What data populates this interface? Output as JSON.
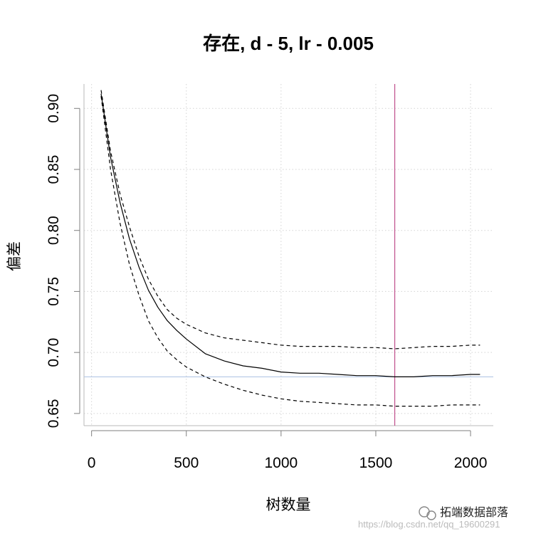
{
  "chart_data": {
    "type": "line",
    "title": "存在, d - 5, lr - 0.005",
    "xlabel": "树数量",
    "ylabel": "偏差",
    "xlim": [
      -40,
      2120
    ],
    "ylim": [
      0.64,
      0.92
    ],
    "x_ticks": [
      0,
      500,
      1000,
      1500,
      2000
    ],
    "y_ticks": [
      0.65,
      0.7,
      0.75,
      0.8,
      0.85,
      0.9
    ],
    "x_tick_labels": [
      "0",
      "500",
      "1000",
      "1500",
      "2000"
    ],
    "y_tick_labels": [
      "0.65",
      "0.70",
      "0.75",
      "0.80",
      "0.85",
      "0.90"
    ],
    "grid": true,
    "series": [
      {
        "style": "solid",
        "color": "#000000",
        "x": [
          50,
          100,
          150,
          200,
          250,
          300,
          350,
          400,
          450,
          500,
          600,
          700,
          800,
          900,
          1000,
          1100,
          1200,
          1300,
          1400,
          1500,
          1600,
          1700,
          1800,
          1900,
          2000,
          2050
        ],
        "values": [
          0.912,
          0.86,
          0.823,
          0.793,
          0.77,
          0.751,
          0.737,
          0.726,
          0.718,
          0.711,
          0.699,
          0.693,
          0.689,
          0.687,
          0.684,
          0.683,
          0.683,
          0.682,
          0.681,
          0.681,
          0.68,
          0.68,
          0.681,
          0.681,
          0.682,
          0.682
        ]
      },
      {
        "style": "dashed",
        "color": "#000000",
        "x": [
          50,
          100,
          150,
          200,
          250,
          300,
          350,
          400,
          450,
          500,
          600,
          700,
          800,
          900,
          1000,
          1100,
          1200,
          1300,
          1400,
          1500,
          1600,
          1700,
          1800,
          1900,
          2000,
          2050
        ],
        "values": [
          0.915,
          0.865,
          0.83,
          0.803,
          0.779,
          0.76,
          0.746,
          0.735,
          0.728,
          0.723,
          0.716,
          0.712,
          0.71,
          0.708,
          0.706,
          0.705,
          0.705,
          0.705,
          0.704,
          0.704,
          0.703,
          0.704,
          0.705,
          0.705,
          0.706,
          0.706
        ]
      },
      {
        "style": "dashed",
        "color": "#000000",
        "x": [
          50,
          100,
          150,
          200,
          250,
          300,
          350,
          400,
          450,
          500,
          600,
          700,
          800,
          900,
          1000,
          1100,
          1200,
          1300,
          1400,
          1500,
          1600,
          1700,
          1800,
          1900,
          2000,
          2050
        ],
        "values": [
          0.91,
          0.85,
          0.806,
          0.772,
          0.747,
          0.726,
          0.712,
          0.701,
          0.694,
          0.688,
          0.68,
          0.674,
          0.669,
          0.665,
          0.662,
          0.66,
          0.659,
          0.658,
          0.657,
          0.657,
          0.656,
          0.656,
          0.656,
          0.657,
          0.657,
          0.657
        ]
      }
    ],
    "reference_lines": {
      "vertical": {
        "x": 1600,
        "color": "#c0508c"
      },
      "horizontal": {
        "y": 0.68,
        "color": "#b4c8e6"
      }
    }
  },
  "watermark": {
    "brand": "拓端数据部落",
    "url": "https://blog.csdn.net/qq_19600291"
  }
}
